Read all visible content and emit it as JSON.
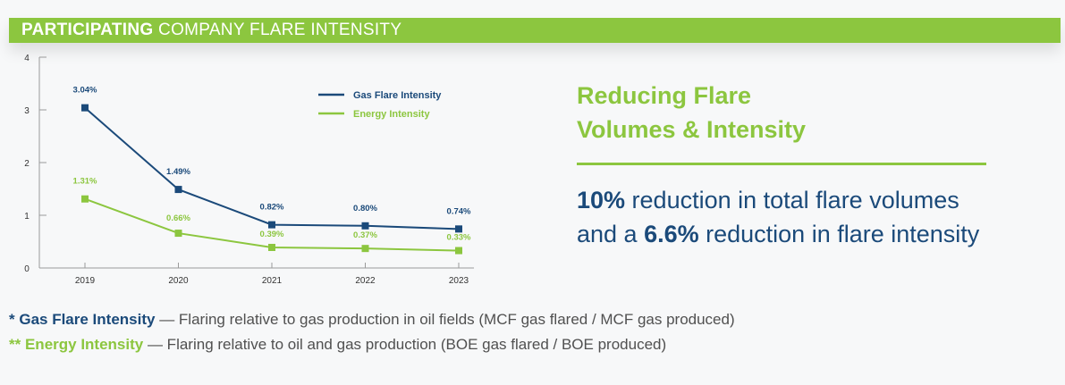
{
  "header": {
    "bold": "PARTICIPATING",
    "light": "COMPANY FLARE INTENSITY"
  },
  "colors": {
    "gas": "#1b4a7a",
    "energy": "#8cc63f",
    "axis": "#9a9a9a",
    "tick_text": "#333333"
  },
  "chart_data": {
    "type": "line",
    "x": [
      "2019",
      "2020",
      "2021",
      "2022",
      "2023"
    ],
    "ylim": [
      0,
      4
    ],
    "yticks": [
      0,
      1,
      2,
      3,
      4
    ],
    "grid": false,
    "legend_position": "top-right",
    "series": [
      {
        "name": "Gas Flare Intensity",
        "color": "#1b4a7a",
        "values": [
          3.04,
          1.49,
          0.82,
          0.8,
          0.74
        ],
        "labels": [
          "3.04%",
          "1.49%",
          "0.82%",
          "0.80%",
          "0.74%"
        ]
      },
      {
        "name": "Energy Intensity",
        "color": "#8cc63f",
        "values": [
          1.31,
          0.66,
          0.39,
          0.37,
          0.33
        ],
        "labels": [
          "1.31%",
          "0.66%",
          "0.39%",
          "0.37%",
          "0.33%"
        ]
      }
    ]
  },
  "side": {
    "title_line1": "Reducing Flare",
    "title_line2": "Volumes & Intensity",
    "pct1": "10%",
    "text1": " reduction in total flare volumes and a ",
    "pct2": "6.6%",
    "text2": " reduction in flare intensity"
  },
  "notes": {
    "gas_marker": "* ",
    "gas_term": "Gas Flare Intensity",
    "gas_desc": " — Flaring relative to gas production in oil fields (MCF gas flared / MCF gas produced)",
    "energy_marker": "** ",
    "energy_term": "Energy Intensity",
    "energy_desc": " — Flaring relative to oil and gas production (BOE gas flared / BOE produced)"
  }
}
